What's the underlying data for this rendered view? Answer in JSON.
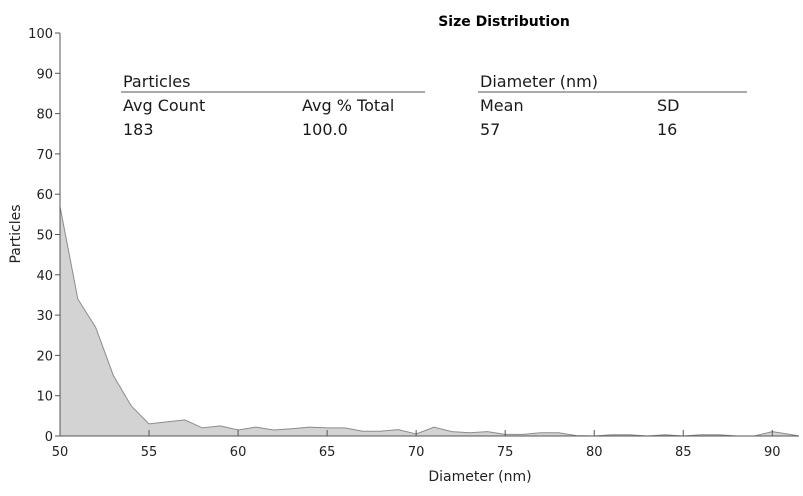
{
  "chart_data": {
    "type": "area",
    "title": "Size Distribution",
    "xlabel": "Diameter (nm)",
    "ylabel": "Particles",
    "xlim": [
      50,
      91.5
    ],
    "ylim": [
      0,
      100
    ],
    "xticks": [
      50,
      55,
      60,
      65,
      70,
      75,
      80,
      85,
      90
    ],
    "yticks": [
      0,
      10,
      20,
      30,
      40,
      50,
      60,
      70,
      80,
      90,
      100
    ],
    "grid": false,
    "colors": {
      "fill": "#d3d3d3",
      "line": "#8c8c8c",
      "axis": "#555555"
    },
    "series": [
      {
        "x": [
          50,
          51,
          52,
          53,
          54,
          55,
          56,
          57,
          58,
          59,
          60,
          61,
          62,
          63,
          64,
          65,
          66,
          67,
          68,
          69,
          70,
          71,
          72,
          73,
          74,
          75,
          76,
          77,
          78,
          79,
          80,
          81,
          82,
          83,
          84,
          85,
          86,
          87,
          88,
          89,
          90,
          91,
          91.5
        ],
        "y": [
          57,
          34,
          27,
          15,
          7.5,
          3,
          3.5,
          4,
          2,
          2.5,
          1.5,
          2.2,
          1.5,
          1.8,
          2.2,
          2,
          2,
          1.2,
          1.2,
          1.6,
          0.5,
          2.2,
          1.1,
          0.8,
          1.1,
          0.4,
          0.4,
          0.8,
          0.8,
          0.1,
          0,
          0.3,
          0.3,
          0,
          0.3,
          0,
          0.3,
          0.3,
          0,
          0,
          1.1,
          0.4,
          0
        ]
      }
    ],
    "summary": {
      "particles_header": "Particles",
      "diameter_header": "Diameter (nm)",
      "avg_count_label": "Avg Count",
      "avg_count_value": "183",
      "avg_pct_label": "Avg % Total",
      "avg_pct_value": "100.0",
      "mean_label": "Mean",
      "mean_value": "57",
      "sd_label": "SD",
      "sd_value": "16"
    }
  }
}
